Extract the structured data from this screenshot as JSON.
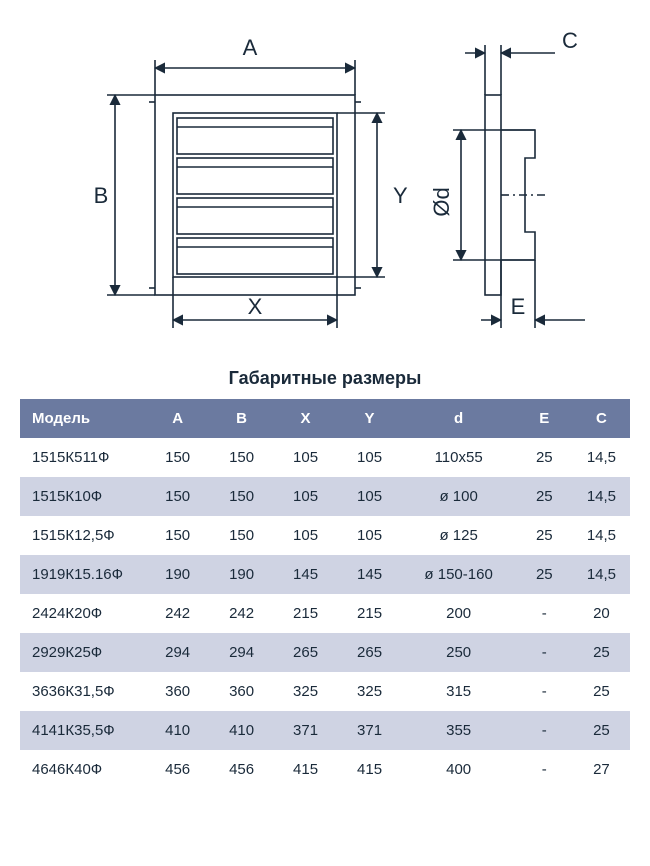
{
  "title": "Габаритные размеры",
  "diagram": {
    "labels": {
      "A": "A",
      "B": "B",
      "C": "C",
      "X": "X",
      "Y": "Y",
      "E": "E",
      "diameter": "Ød"
    },
    "stroke_color": "#1a2a3a",
    "stroke_width": 1.6,
    "label_fontsize": 22,
    "label_color": "#1a2a3a"
  },
  "table": {
    "header_bg": "#6b7aa0",
    "header_fg": "#ffffff",
    "row_alt_bg": "#cfd3e3",
    "row_bg": "#ffffff",
    "columns": [
      "Модель",
      "A",
      "B",
      "X",
      "Y",
      "d",
      "E",
      "C"
    ],
    "rows": [
      [
        "1515К511Ф",
        "150",
        "150",
        "105",
        "105",
        "110x55",
        "25",
        "14,5"
      ],
      [
        "1515К10Ф",
        "150",
        "150",
        "105",
        "105",
        "ø 100",
        "25",
        "14,5"
      ],
      [
        "1515К12,5Ф",
        "150",
        "150",
        "105",
        "105",
        "ø 125",
        "25",
        "14,5"
      ],
      [
        "1919К15.16Ф",
        "190",
        "190",
        "145",
        "145",
        "ø 150-160",
        "25",
        "14,5"
      ],
      [
        "2424К20Ф",
        "242",
        "242",
        "215",
        "215",
        "200",
        "-",
        "20"
      ],
      [
        "2929К25Ф",
        "294",
        "294",
        "265",
        "265",
        "250",
        "-",
        "25"
      ],
      [
        "3636К31,5Ф",
        "360",
        "360",
        "325",
        "325",
        "315",
        "-",
        "25"
      ],
      [
        "4141К35,5Ф",
        "410",
        "410",
        "371",
        "371",
        "355",
        "-",
        "25"
      ],
      [
        "4646К40Ф",
        "456",
        "456",
        "415",
        "415",
        "400",
        "-",
        "27"
      ]
    ]
  }
}
